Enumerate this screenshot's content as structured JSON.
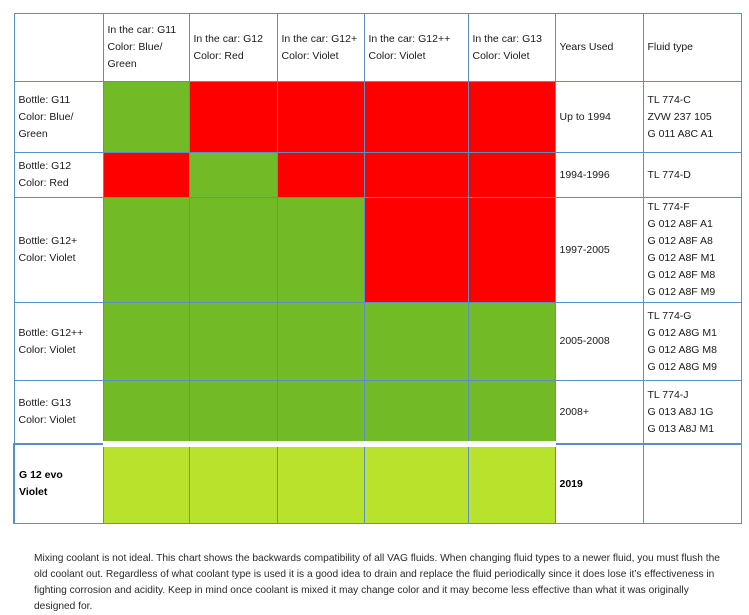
{
  "header": {
    "cols": [
      [
        "In the car: G11",
        "Color: Blue/",
        "Green"
      ],
      [
        "In the car: G12",
        "Color: Red"
      ],
      [
        "In the car: G12+",
        "Color: Violet"
      ],
      [
        "In the car: G12++",
        "Color: Violet"
      ],
      [
        "In the car: G13",
        "Color: Violet"
      ]
    ],
    "years_used": "Years Used",
    "fluid_type": "Fluid type"
  },
  "rows": [
    {
      "bottle": [
        "Bottle: G11",
        "Color: Blue/",
        "Green"
      ],
      "cells": [
        "green",
        "red",
        "red",
        "red",
        "red"
      ],
      "years": "Up to 1994",
      "fluid": [
        "TL 774-C",
        "ZVW 237 105",
        "G 011 A8C A1"
      ]
    },
    {
      "bottle": [
        "Bottle: G12",
        "Color: Red"
      ],
      "cells": [
        "red",
        "green",
        "red",
        "red",
        "red"
      ],
      "years": "1994-1996",
      "fluid": [
        "TL 774-D"
      ]
    },
    {
      "bottle": [
        "Bottle: G12+",
        "Color: Violet"
      ],
      "cells": [
        "green",
        "green",
        "green",
        "red",
        "red"
      ],
      "years": "1997-2005",
      "fluid": [
        "TL 774-F",
        "G 012 A8F A1",
        "G 012 A8F A8",
        "G 012 A8F M1",
        "G 012 A8F M8",
        "G 012 A8F M9"
      ]
    },
    {
      "bottle": [
        "Bottle: G12++",
        "Color: Violet"
      ],
      "cells": [
        "green",
        "green",
        "green",
        "green",
        "green"
      ],
      "years": "2005-2008",
      "fluid": [
        "TL 774-G",
        "G 012 A8G M1",
        "G 012 A8G M8",
        "G 012 A8G M9"
      ]
    },
    {
      "bottle": [
        "Bottle: G13",
        "Color: Violet"
      ],
      "cells": [
        "green",
        "green",
        "green",
        "green",
        "green"
      ],
      "years": "2008+",
      "fluid": [
        "TL 774-J",
        "G 013 A8J 1G",
        "G 013 A8J M1"
      ]
    }
  ],
  "evo_row": {
    "bottle": [
      "G 12 evo",
      "Violet"
    ],
    "cells": [
      "lime",
      "lime",
      "lime",
      "lime",
      "lime"
    ],
    "years": "2019",
    "fluid": []
  },
  "colors": {
    "compatible": "#72bb27",
    "incompatible": "#fe0000",
    "evo": "#b8e22c",
    "grid": "#5b8fc4"
  },
  "note": "Mixing coolant is not ideal. This chart shows the backwards compatibility of all VAG fluids. When changing fluid types to a newer fluid, you must flush the old coolant out. Regardless of what coolant type is used it is a good idea to drain and replace the fluid periodically since it does lose it’s effectiveness in fighting corrosion and acidity. Keep in mind once coolant is mixed it may change color and it may become less effective than what it was originally designed for."
}
